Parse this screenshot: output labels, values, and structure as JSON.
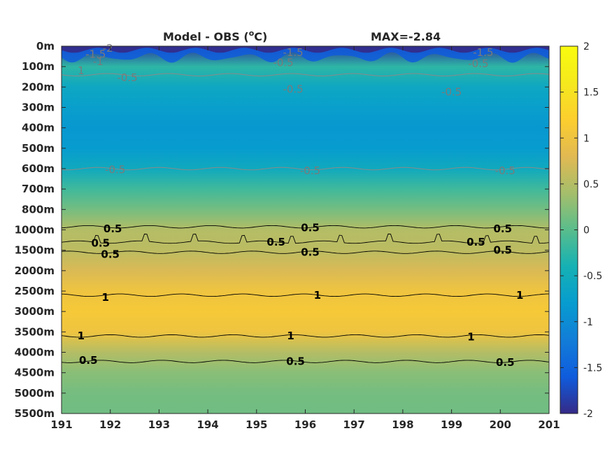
{
  "title": {
    "left_text": "Model - OBS (",
    "degree": "o",
    "unit": "C)",
    "right": "MAX=-2.84"
  },
  "chart_data": {
    "type": "heatmap",
    "title": "Model - OBS (°C)",
    "annotation": "MAX=-2.84",
    "xlabel": "",
    "ylabel": "",
    "x_range": [
      191,
      201
    ],
    "x_ticks": [
      "191",
      "192",
      "193",
      "194",
      "195",
      "196",
      "197",
      "198",
      "199",
      "200",
      "201"
    ],
    "y_ticks": [
      "0m",
      "100m",
      "200m",
      "300m",
      "400m",
      "500m",
      "600m",
      "700m",
      "800m",
      "1000m",
      "1500m",
      "2000m",
      "2500m",
      "3000m",
      "3500m",
      "4000m",
      "4500m",
      "5000m",
      "5500m"
    ],
    "colorbar": {
      "range": [
        -2,
        2
      ],
      "ticks": [
        "2",
        "1.5",
        "1",
        "0.5",
        "0",
        "-0.5",
        "-1",
        "-1.5",
        "-2"
      ],
      "colormap": "parula"
    },
    "depth_profile_values": [
      {
        "depth": "0m",
        "value": -1.9
      },
      {
        "depth": "100m",
        "value": -0.25
      },
      {
        "depth": "200m",
        "value": -0.6
      },
      {
        "depth": "300m",
        "value": -0.75
      },
      {
        "depth": "400m",
        "value": -0.85
      },
      {
        "depth": "500m",
        "value": -0.8
      },
      {
        "depth": "600m",
        "value": -0.55
      },
      {
        "depth": "700m",
        "value": -0.15
      },
      {
        "depth": "800m",
        "value": 0.15
      },
      {
        "depth": "1000m",
        "value": 0.5
      },
      {
        "depth": "1500m",
        "value": 0.55
      },
      {
        "depth": "2000m",
        "value": 0.75
      },
      {
        "depth": "2500m",
        "value": 1.0
      },
      {
        "depth": "3000m",
        "value": 1.1
      },
      {
        "depth": "3500m",
        "value": 1.0
      },
      {
        "depth": "4000m",
        "value": 0.5
      },
      {
        "depth": "4500m",
        "value": 0.25
      },
      {
        "depth": "5000m",
        "value": 0.15
      },
      {
        "depth": "5500m",
        "value": 0.12
      }
    ],
    "contour_labels": [
      {
        "value": "-2",
        "style": "gray",
        "x": 191.95,
        "depth_index": 0.1
      },
      {
        "value": "-1.5",
        "style": "gray",
        "x": 191.7,
        "depth_index": 0.4
      },
      {
        "value": "-1",
        "style": "gray",
        "x": 191.75,
        "depth_index": 0.75
      },
      {
        "value": "1",
        "style": "gray",
        "x": 191.4,
        "depth_index": 1.2
      },
      {
        "value": "-0.5",
        "style": "gray",
        "x": 192.35,
        "depth_index": 1.55
      },
      {
        "value": "-1.5",
        "style": "gray",
        "x": 195.75,
        "depth_index": 0.3
      },
      {
        "value": "-0.5",
        "style": "gray",
        "x": 195.55,
        "depth_index": 0.8
      },
      {
        "value": "-0.5",
        "style": "gray",
        "x": 195.75,
        "depth_index": 2.1
      },
      {
        "value": "-1.5",
        "style": "gray",
        "x": 199.65,
        "depth_index": 0.3
      },
      {
        "value": "-0.5",
        "style": "gray",
        "x": 199.55,
        "depth_index": 0.85
      },
      {
        "value": "-0.5",
        "style": "gray",
        "x": 199.0,
        "depth_index": 2.25
      },
      {
        "value": "-0.5",
        "style": "gray",
        "x": 192.1,
        "depth_index": 6.05
      },
      {
        "value": "-0.5",
        "style": "gray",
        "x": 196.1,
        "depth_index": 6.1
      },
      {
        "value": "-0.5",
        "style": "gray",
        "x": 200.1,
        "depth_index": 6.1
      },
      {
        "value": "0.5",
        "style": "black",
        "x": 192.05,
        "depth_index": 8.95
      },
      {
        "value": "0.5",
        "style": "black",
        "x": 196.1,
        "depth_index": 8.9
      },
      {
        "value": "0.5",
        "style": "black",
        "x": 200.05,
        "depth_index": 8.95
      },
      {
        "value": "0.5",
        "style": "black",
        "x": 191.8,
        "depth_index": 9.65
      },
      {
        "value": "0.5",
        "style": "black",
        "x": 195.4,
        "depth_index": 9.6
      },
      {
        "value": "0.5",
        "style": "black",
        "x": 199.5,
        "depth_index": 9.6
      },
      {
        "value": "0.5",
        "style": "black",
        "x": 192.0,
        "depth_index": 10.2
      },
      {
        "value": "0.5",
        "style": "black",
        "x": 196.1,
        "depth_index": 10.1
      },
      {
        "value": "0.5",
        "style": "black",
        "x": 200.05,
        "depth_index": 10.0
      },
      {
        "value": "1",
        "style": "black",
        "x": 191.9,
        "depth_index": 12.3
      },
      {
        "value": "1",
        "style": "black",
        "x": 196.25,
        "depth_index": 12.2
      },
      {
        "value": "1",
        "style": "black",
        "x": 200.4,
        "depth_index": 12.2
      },
      {
        "value": "1",
        "style": "black",
        "x": 191.4,
        "depth_index": 14.2
      },
      {
        "value": "1",
        "style": "black",
        "x": 195.7,
        "depth_index": 14.2
      },
      {
        "value": "1",
        "style": "black",
        "x": 199.4,
        "depth_index": 14.25
      },
      {
        "value": "0.5",
        "style": "black",
        "x": 191.55,
        "depth_index": 15.4
      },
      {
        "value": "0.5",
        "style": "black",
        "x": 195.8,
        "depth_index": 15.45
      },
      {
        "value": "0.5",
        "style": "black",
        "x": 200.1,
        "depth_index": 15.5
      }
    ],
    "contour_lines": [
      {
        "level": -0.5,
        "style": "gray",
        "depth_index": 1.4
      },
      {
        "level": -0.5,
        "style": "gray",
        "depth_index": 6.0
      },
      {
        "level": 0.5,
        "style": "black",
        "depth_index": 8.85
      },
      {
        "level": 0.5,
        "style": "black",
        "depth_index": 9.6
      },
      {
        "level": 0.5,
        "style": "black",
        "depth_index": 10.1
      },
      {
        "level": 1,
        "style": "black",
        "depth_index": 12.2
      },
      {
        "level": 1,
        "style": "black",
        "depth_index": 14.2
      },
      {
        "level": 0.5,
        "style": "black",
        "depth_index": 15.45
      }
    ]
  }
}
